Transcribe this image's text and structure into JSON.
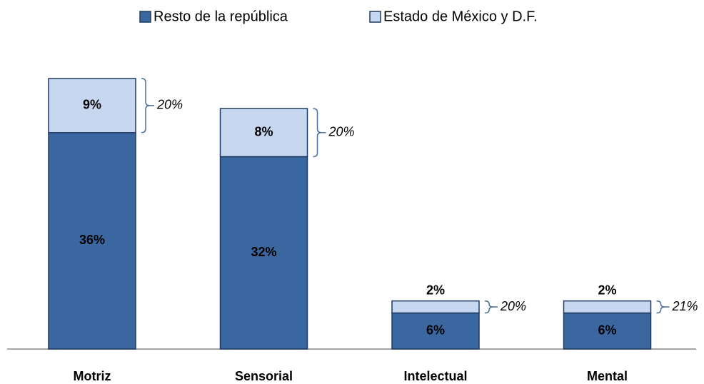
{
  "chart_data": {
    "type": "stacked_bar",
    "categories": [
      "Motriz",
      "Sensorial",
      "Intelectual",
      "Mental"
    ],
    "series": [
      {
        "name": "Resto de la república",
        "color": "#3b67a0",
        "values": [
          36,
          32,
          6,
          6
        ],
        "value_labels": [
          "36%",
          "32%",
          "6%",
          "6%"
        ]
      },
      {
        "name": "Estado de México y D.F.",
        "color": "#c6d7ef",
        "values": [
          9,
          8,
          2,
          2
        ],
        "value_labels": [
          "9%",
          "8%",
          "2%",
          "2%"
        ]
      }
    ],
    "annotations": [
      "20%",
      "20%",
      "20%",
      "21%"
    ],
    "legend": "top"
  }
}
